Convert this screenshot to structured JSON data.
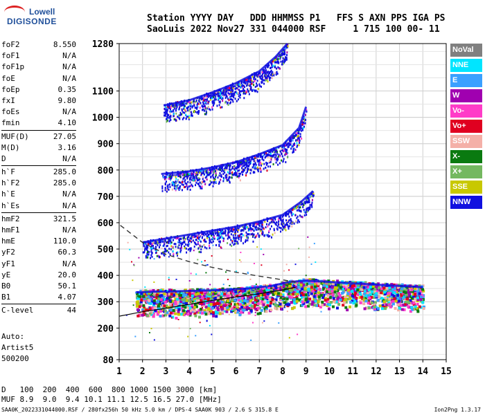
{
  "logo": {
    "line1": "Lowell",
    "line2": "DIGISONDE"
  },
  "header": {
    "line1": "Station YYYY DAY   DDD HHMMSS P1   FFS S AXN PPS IGA PS",
    "line2": "SaoLuis 2022 Nov27 331 044000 RSF     1 715 100 00- 11"
  },
  "params": [
    {
      "k": "foF2",
      "v": "8.550"
    },
    {
      "k": "foF1",
      "v": "N/A"
    },
    {
      "k": "foF1p",
      "v": "N/A"
    },
    {
      "k": "foE",
      "v": "N/A"
    },
    {
      "k": "foEp",
      "v": "0.35"
    },
    {
      "k": "fxI",
      "v": "9.80"
    },
    {
      "k": "foEs",
      "v": "N/A"
    },
    {
      "k": "fmin",
      "v": "4.10"
    },
    {
      "k": "MUF(D)",
      "v": "27.05",
      "sep": true
    },
    {
      "k": "M(D)",
      "v": "3.16"
    },
    {
      "k": "D",
      "v": "N/A"
    },
    {
      "k": "h`F",
      "v": "285.0",
      "sep": true
    },
    {
      "k": "h`F2",
      "v": "285.0"
    },
    {
      "k": "h`E",
      "v": "N/A"
    },
    {
      "k": "h`Es",
      "v": "N/A"
    },
    {
      "k": "hmF2",
      "v": "321.5",
      "sep": true
    },
    {
      "k": "hmF1",
      "v": "N/A"
    },
    {
      "k": "hmE",
      "v": "110.0"
    },
    {
      "k": "yF2",
      "v": "60.3"
    },
    {
      "k": "yF1",
      "v": "N/A"
    },
    {
      "k": "yE",
      "v": "20.0"
    },
    {
      "k": "B0",
      "v": "50.1"
    },
    {
      "k": "B1",
      "v": "4.07"
    },
    {
      "k": "C-level",
      "v": "44",
      "sep": true
    }
  ],
  "auto": {
    "line1": "Auto:",
    "line2": "Artist5",
    "line3": "500200"
  },
  "legend": [
    {
      "label": "NoVal",
      "color": "#808080"
    },
    {
      "label": "NNE",
      "color": "#00e5ff"
    },
    {
      "label": "E",
      "color": "#3aa0ff"
    },
    {
      "label": "W",
      "color": "#a000b0"
    },
    {
      "label": "Vo-",
      "color": "#ff3cc8"
    },
    {
      "label": "Vo+",
      "color": "#e00020"
    },
    {
      "label": "SSW",
      "color": "#f4b0a8"
    },
    {
      "label": "X-",
      "color": "#0a7a10"
    },
    {
      "label": "X+",
      "color": "#74b860"
    },
    {
      "label": "SSE",
      "color": "#c8c800"
    },
    {
      "label": "NNW",
      "color": "#1010e0"
    }
  ],
  "chart_data": {
    "type": "scatter",
    "x_ticks": [
      1,
      2,
      3,
      4,
      5,
      6,
      7,
      8,
      9,
      10,
      11,
      12,
      13,
      14,
      15
    ],
    "y_ticks": [
      80,
      200,
      300,
      400,
      500,
      600,
      700,
      800,
      900,
      1000,
      1100,
      1280
    ],
    "xlim": [
      1,
      15
    ],
    "ylim": [
      80,
      1280
    ],
    "grid": true,
    "traces": [
      {
        "name": "o-trace-1",
        "points": [
          [
            1.7,
            335
          ],
          [
            2.5,
            338
          ],
          [
            3.5,
            340
          ],
          [
            4.5,
            342
          ],
          [
            5.5,
            345
          ],
          [
            6.5,
            350
          ],
          [
            7.5,
            360
          ],
          [
            8.3,
            375
          ],
          [
            9,
            380
          ],
          [
            10,
            375
          ],
          [
            11,
            370
          ],
          [
            12,
            365
          ],
          [
            13,
            360
          ],
          [
            14,
            355
          ]
        ]
      },
      {
        "name": "o-trace-2",
        "points": [
          [
            2,
            525
          ],
          [
            3,
            540
          ],
          [
            4,
            555
          ],
          [
            5,
            570
          ],
          [
            6,
            585
          ],
          [
            7,
            605
          ],
          [
            8,
            630
          ],
          [
            8.8,
            680
          ],
          [
            9.3,
            720
          ]
        ]
      },
      {
        "name": "o-trace-3",
        "points": [
          [
            2.8,
            785
          ],
          [
            4,
            795
          ],
          [
            5,
            810
          ],
          [
            6,
            830
          ],
          [
            7,
            860
          ],
          [
            8,
            895
          ],
          [
            8.7,
            960
          ],
          [
            9,
            1040
          ]
        ]
      },
      {
        "name": "o-trace-4",
        "points": [
          [
            2.9,
            1045
          ],
          [
            4,
            1065
          ],
          [
            5,
            1095
          ],
          [
            6,
            1130
          ],
          [
            7,
            1175
          ],
          [
            7.7,
            1230
          ],
          [
            8.2,
            1280
          ]
        ]
      }
    ],
    "profile_dashed": [
      [
        1.05,
        590
      ],
      [
        2,
        525
      ],
      [
        3,
        480
      ],
      [
        4,
        452
      ],
      [
        5,
        430
      ],
      [
        6,
        412
      ],
      [
        7,
        397
      ],
      [
        8,
        383
      ],
      [
        8.55,
        375
      ]
    ],
    "profile_solid": [
      [
        1,
        245
      ],
      [
        2,
        262
      ],
      [
        3,
        275
      ],
      [
        4,
        290
      ],
      [
        5,
        305
      ],
      [
        6,
        318
      ],
      [
        7,
        330
      ],
      [
        8,
        345
      ],
      [
        8.55,
        355
      ]
    ]
  },
  "muf_table": {
    "d_label": "D",
    "d_values": "100  200  400  600  800 1000 1500 3000 [km]",
    "muf_label": "MUF",
    "muf_values": "8.9  9.0  9.4 10.1 11.1 12.5 16.5 27.0 [MHz]"
  },
  "footer": {
    "text": "SAA0K_2022331044000.RSF / 280fx256h 50 kHz 5.0 km / DPS-4 SAA0K 903 / 2.6 S 315.8 E",
    "version": "Ion2Png 1.3.17"
  }
}
